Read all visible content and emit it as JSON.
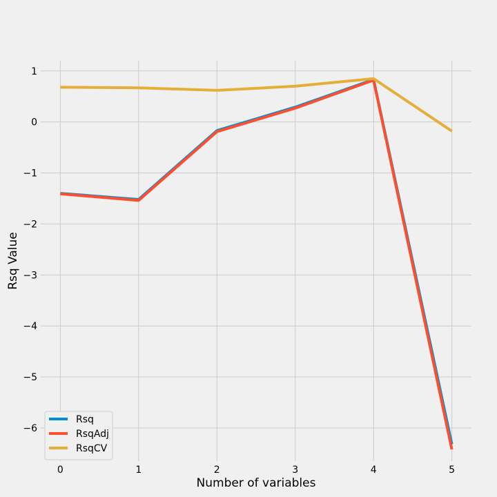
{
  "chart_data": {
    "type": "line",
    "title": "",
    "xlabel": "Number of variables",
    "ylabel": "Rsq Value",
    "x": [
      0,
      1,
      2,
      3,
      4,
      5
    ],
    "xlim": [
      -0.25,
      5.25
    ],
    "ylim": [
      -6.65,
      1.2
    ],
    "xticks": [
      0,
      1,
      2,
      3,
      4,
      5
    ],
    "xtick_labels": [
      "0",
      "1",
      "2",
      "3",
      "4",
      "5"
    ],
    "yticks": [
      1,
      0,
      -1,
      -2,
      -3,
      -4,
      -5,
      -6
    ],
    "ytick_labels": [
      "1",
      "0",
      "−1",
      "−2",
      "−3",
      "−4",
      "−5",
      "−6"
    ],
    "grid": true,
    "legend_position": "lower-left",
    "series": [
      {
        "name": "Rsq",
        "color": "#008fd5",
        "values": [
          -1.4,
          -1.52,
          -0.17,
          0.29,
          0.83,
          -6.32
        ]
      },
      {
        "name": "RsqAdj",
        "color": "#fc4f30",
        "values": [
          -1.41,
          -1.54,
          -0.19,
          0.27,
          0.82,
          -6.42
        ]
      },
      {
        "name": "RsqCV",
        "color": "#e5ae38",
        "values": [
          0.68,
          0.67,
          0.62,
          0.7,
          0.85,
          -0.18
        ]
      }
    ]
  }
}
